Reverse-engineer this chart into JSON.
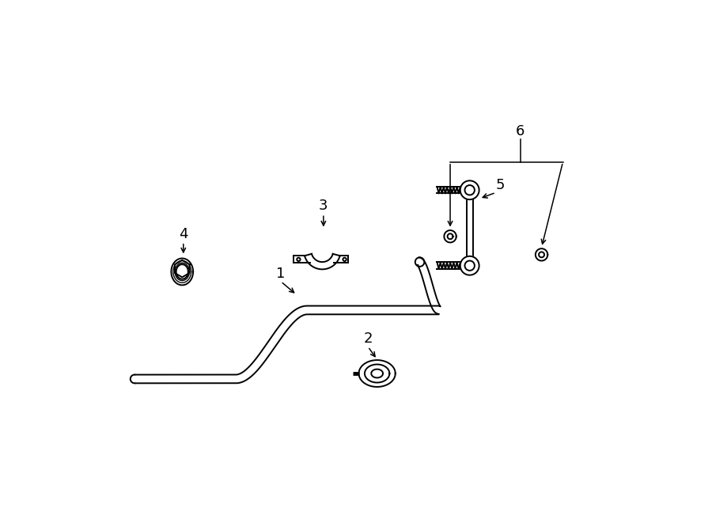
{
  "bg_color": "#ffffff",
  "line_color": "#000000",
  "figsize": [
    9.0,
    6.61
  ],
  "dpi": 100,
  "xlim": [
    0,
    9
  ],
  "ylim": [
    0,
    6.61
  ],
  "label_fs": 13,
  "lw": 1.4
}
